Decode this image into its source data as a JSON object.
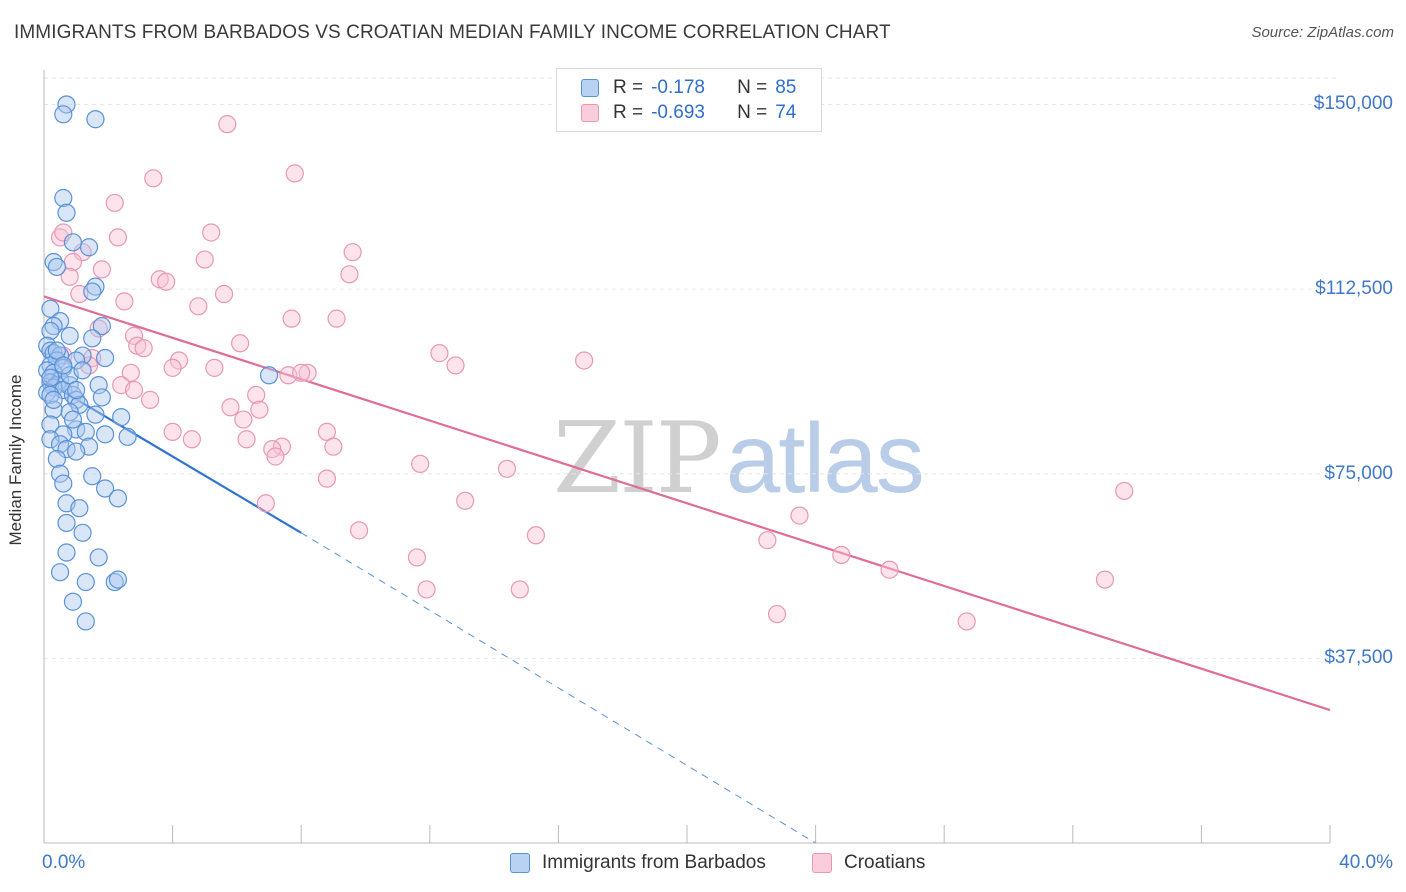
{
  "title": "IMMIGRANTS FROM BARBADOS VS CROATIAN MEDIAN FAMILY INCOME CORRELATION CHART",
  "source": "Source: ZipAtlas.com",
  "watermark": {
    "zip": "ZIP",
    "atlas": "atlas"
  },
  "legend": {
    "rows": [
      {
        "r_label": "R =",
        "r_value": "-0.178",
        "n_label": "N =",
        "n_value": "85"
      },
      {
        "r_label": "R =",
        "r_value": "-0.693",
        "n_label": "N =",
        "n_value": "74"
      }
    ]
  },
  "colors": {
    "barbados_fill": "#aac8f0",
    "barbados_stroke": "#5a92d8",
    "barbados_line": "#2f74d0",
    "croatians_fill": "#f8c2d4",
    "croatians_stroke": "#e898b4",
    "croatians_line": "#e06c98",
    "grid": "#e6e6e6",
    "axis": "#bbbbbb",
    "tick_text": "#3f78c8"
  },
  "chart_data": {
    "type": "scatter",
    "ylabel": "Median Family Income",
    "xlim": [
      0,
      40
    ],
    "ylim": [
      0,
      157000
    ],
    "x_tick_labels": [
      "0.0%",
      "40.0%"
    ],
    "y_ticks": [
      {
        "value": 37500,
        "label": "$37,500"
      },
      {
        "value": 75000,
        "label": "$75,000"
      },
      {
        "value": 112500,
        "label": "$112,500"
      },
      {
        "value": 150000,
        "label": "$150,000"
      }
    ],
    "grid": "horizontal-dashed",
    "legend_position": "bottom-center",
    "series": [
      {
        "name": "Immigrants from Barbados",
        "R": -0.178,
        "N": 85,
        "trend": {
          "x0": 0,
          "y0": 94000,
          "x1": 8.0,
          "y1": 63000,
          "dashed_to_x": 24,
          "dashed_to_y": 0
        },
        "points": [
          [
            0.7,
            150000
          ],
          [
            0.6,
            148000
          ],
          [
            1.6,
            147000
          ],
          [
            0.6,
            131000
          ],
          [
            0.7,
            128000
          ],
          [
            0.9,
            122000
          ],
          [
            1.4,
            121000
          ],
          [
            0.3,
            118000
          ],
          [
            0.4,
            117000
          ],
          [
            1.6,
            113000
          ],
          [
            1.5,
            112000
          ],
          [
            0.2,
            108500
          ],
          [
            0.5,
            106000
          ],
          [
            0.3,
            105000
          ],
          [
            1.8,
            105000
          ],
          [
            0.2,
            104000
          ],
          [
            0.8,
            103000
          ],
          [
            1.5,
            102500
          ],
          [
            0.1,
            101000
          ],
          [
            0.2,
            100000
          ],
          [
            0.3,
            99500
          ],
          [
            0.5,
            99000
          ],
          [
            1.2,
            99000
          ],
          [
            1.9,
            98500
          ],
          [
            0.4,
            98000
          ],
          [
            1.0,
            98000
          ],
          [
            0.2,
            97000
          ],
          [
            0.6,
            96500
          ],
          [
            0.1,
            96000
          ],
          [
            0.3,
            95500
          ],
          [
            7.0,
            95000
          ],
          [
            0.5,
            94000
          ],
          [
            0.2,
            93500
          ],
          [
            0.4,
            93000
          ],
          [
            0.8,
            93000
          ],
          [
            1.7,
            93000
          ],
          [
            0.3,
            92500
          ],
          [
            0.6,
            92000
          ],
          [
            0.1,
            91500
          ],
          [
            0.2,
            91000
          ],
          [
            0.9,
            91000
          ],
          [
            1.8,
            90500
          ],
          [
            1.0,
            90000
          ],
          [
            1.1,
            89000
          ],
          [
            0.3,
            88000
          ],
          [
            0.8,
            87500
          ],
          [
            1.6,
            87000
          ],
          [
            2.4,
            86500
          ],
          [
            0.2,
            85000
          ],
          [
            1.0,
            84000
          ],
          [
            1.3,
            83500
          ],
          [
            0.6,
            83000
          ],
          [
            1.9,
            83000
          ],
          [
            2.6,
            82500
          ],
          [
            0.2,
            82000
          ],
          [
            0.5,
            81000
          ],
          [
            1.4,
            80500
          ],
          [
            0.7,
            80000
          ],
          [
            1.0,
            79500
          ],
          [
            0.4,
            78000
          ],
          [
            0.5,
            75000
          ],
          [
            1.5,
            74500
          ],
          [
            0.6,
            73000
          ],
          [
            1.9,
            72000
          ],
          [
            2.3,
            70000
          ],
          [
            0.7,
            69000
          ],
          [
            1.1,
            68000
          ],
          [
            0.7,
            65000
          ],
          [
            1.2,
            63000
          ],
          [
            0.7,
            59000
          ],
          [
            1.7,
            58000
          ],
          [
            0.5,
            55000
          ],
          [
            1.3,
            53000
          ],
          [
            2.2,
            53000
          ],
          [
            2.3,
            53500
          ],
          [
            0.9,
            49000
          ],
          [
            1.3,
            45000
          ],
          [
            0.3,
            90000
          ],
          [
            0.8,
            95000
          ],
          [
            1.2,
            96000
          ],
          [
            0.4,
            100000
          ],
          [
            0.6,
            97000
          ],
          [
            1.0,
            92000
          ],
          [
            0.2,
            94500
          ],
          [
            0.9,
            86000
          ]
        ]
      },
      {
        "name": "Croatians",
        "R": -0.693,
        "N": 74,
        "trend": {
          "x0": 0,
          "y0": 111000,
          "x1": 40,
          "y1": 27000
        },
        "points": [
          [
            5.7,
            146000
          ],
          [
            3.4,
            135000
          ],
          [
            7.8,
            136000
          ],
          [
            2.2,
            130000
          ],
          [
            0.5,
            123000
          ],
          [
            0.6,
            124000
          ],
          [
            5.2,
            124000
          ],
          [
            2.3,
            123000
          ],
          [
            1.2,
            120000
          ],
          [
            9.6,
            120000
          ],
          [
            5.0,
            118500
          ],
          [
            0.9,
            118000
          ],
          [
            1.8,
            116500
          ],
          [
            9.5,
            115500
          ],
          [
            0.8,
            115000
          ],
          [
            3.6,
            114500
          ],
          [
            3.8,
            114000
          ],
          [
            1.1,
            111500
          ],
          [
            5.6,
            111500
          ],
          [
            2.5,
            110000
          ],
          [
            4.8,
            109000
          ],
          [
            7.7,
            106500
          ],
          [
            9.1,
            106500
          ],
          [
            1.7,
            104500
          ],
          [
            2.8,
            103000
          ],
          [
            6.1,
            101500
          ],
          [
            2.9,
            101000
          ],
          [
            3.1,
            100500
          ],
          [
            12.3,
            99500
          ],
          [
            0.6,
            99000
          ],
          [
            1.5,
            98500
          ],
          [
            4.2,
            98000
          ],
          [
            16.8,
            98000
          ],
          [
            12.8,
            97000
          ],
          [
            4.0,
            96500
          ],
          [
            5.3,
            96500
          ],
          [
            2.7,
            95500
          ],
          [
            8.2,
            95500
          ],
          [
            7.6,
            95000
          ],
          [
            8.0,
            95500
          ],
          [
            2.4,
            93000
          ],
          [
            2.8,
            92000
          ],
          [
            6.6,
            91000
          ],
          [
            3.3,
            90000
          ],
          [
            5.8,
            88500
          ],
          [
            6.7,
            88000
          ],
          [
            6.2,
            86000
          ],
          [
            4.0,
            83500
          ],
          [
            8.8,
            83500
          ],
          [
            4.6,
            82000
          ],
          [
            6.3,
            82000
          ],
          [
            7.4,
            80500
          ],
          [
            9.0,
            80500
          ],
          [
            7.1,
            80000
          ],
          [
            7.2,
            78500
          ],
          [
            11.7,
            77000
          ],
          [
            14.4,
            76000
          ],
          [
            8.8,
            74000
          ],
          [
            33.6,
            71500
          ],
          [
            13.1,
            69500
          ],
          [
            6.9,
            69000
          ],
          [
            23.5,
            66500
          ],
          [
            9.8,
            63500
          ],
          [
            15.3,
            62500
          ],
          [
            22.5,
            61500
          ],
          [
            24.8,
            58500
          ],
          [
            11.6,
            58000
          ],
          [
            26.3,
            55500
          ],
          [
            33.0,
            53500
          ],
          [
            11.9,
            51500
          ],
          [
            14.8,
            51500
          ],
          [
            22.8,
            46500
          ],
          [
            28.7,
            45000
          ],
          [
            1.4,
            97000
          ]
        ]
      }
    ]
  }
}
